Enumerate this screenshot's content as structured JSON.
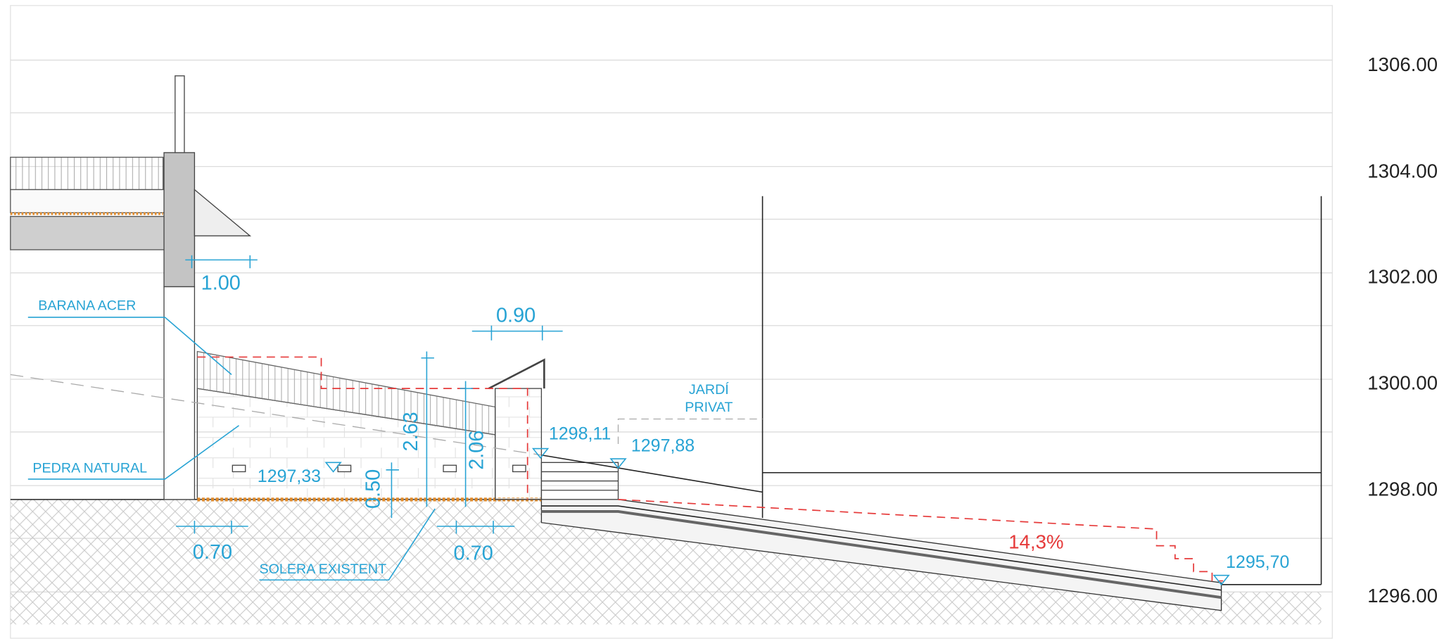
{
  "elevation_scale": [
    "1306.00",
    "1304.00",
    "1302.00",
    "1300.00",
    "1298.00",
    "1296.00"
  ],
  "annotations": {
    "railing": "BARANA ACER",
    "stone": "PEDRA NATURAL",
    "slab": "SOLERA EXISTENT",
    "garden": [
      "JARDÍ",
      "PRIVAT"
    ]
  },
  "dimensions": {
    "eave": "1.00",
    "pillar": "0.90",
    "wall_high": "2.63",
    "wall_low": "2.06",
    "base": "0.50",
    "left_width": "0.70",
    "right_width": "0.70"
  },
  "levels": {
    "floor": "1297,33",
    "top_stair": "1298,11",
    "stair_foot": "1297,88",
    "bottom": "1295,70"
  },
  "slope": "14,3%"
}
